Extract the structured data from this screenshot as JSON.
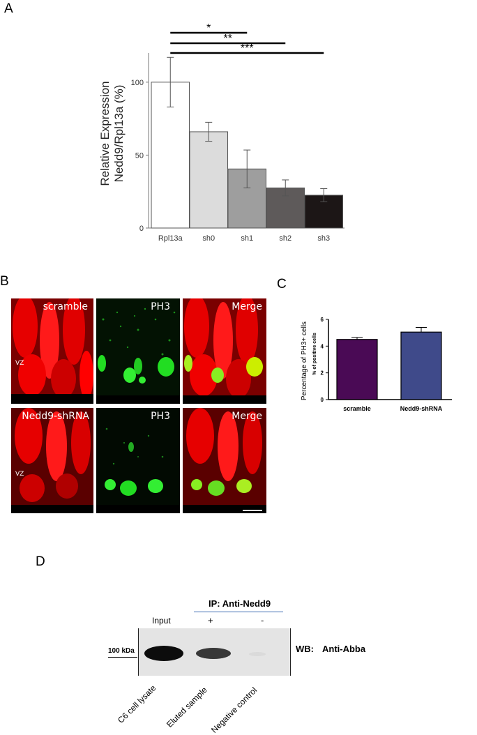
{
  "panels": {
    "a": {
      "letter": "A"
    },
    "b": {
      "letter": "B",
      "row1": {
        "condition": "scramble",
        "marker": "PH3",
        "merge": "Merge",
        "region": "VZ"
      },
      "row2": {
        "condition": "Nedd9-shRNA",
        "marker": "PH3",
        "merge": "Merge",
        "region": "VZ"
      }
    },
    "c": {
      "letter": "C"
    },
    "d": {
      "letter": "D",
      "ip_label": "IP: Anti-Nedd9",
      "input_label": "Input",
      "plus_label": "+",
      "minus_label": "-",
      "mw_label": "100 kDa",
      "wb_label": "WB:",
      "wb_antibody": "Anti-Abba",
      "lanes": [
        "C6 cell lysate",
        "Eluted sample",
        "Negative control"
      ]
    }
  },
  "colors": {
    "red_channel": "#e60000",
    "green_channel": "#22dd22",
    "scramble_bar": "#4a0a55",
    "shrna_bar": "#3f4a8a"
  },
  "chart_data": [
    {
      "type": "bar",
      "panel": "A",
      "categories": [
        "Rpl13a",
        "sh0",
        "sh1",
        "sh2",
        "sh3"
      ],
      "values": [
        100,
        66,
        40.5,
        27.5,
        22.5
      ],
      "errors": [
        17,
        6.5,
        13,
        5.5,
        4.5
      ],
      "bar_colors": [
        "#ffffff",
        "#dcdcdc",
        "#9e9e9e",
        "#5e5a5a",
        "#1c1616"
      ],
      "ylabel": "Relative Expression\nNedd9/Rpl13a (%)",
      "ylabel_lines": [
        "Relative Expression",
        "Nedd9/Rpl13a (%)"
      ],
      "ylim": [
        0,
        120
      ],
      "yticks": [
        0,
        50,
        100
      ],
      "significance": [
        {
          "from": "Rpl13a",
          "to": "sh1",
          "label": "*"
        },
        {
          "from": "Rpl13a",
          "to": "sh2",
          "label": "**"
        },
        {
          "from": "Rpl13a",
          "to": "sh3",
          "label": "***"
        }
      ]
    },
    {
      "type": "bar",
      "panel": "C",
      "categories": [
        "scramble",
        "Nedd9-shRNA"
      ],
      "values": [
        4.5,
        5.05
      ],
      "errors": [
        0.15,
        0.35
      ],
      "ylabel": "Percentage of PH3+ cells",
      "ylabel_secondary": "% of positive cells",
      "ylim": [
        0,
        6
      ],
      "yticks": [
        0,
        2,
        4,
        6
      ]
    }
  ]
}
